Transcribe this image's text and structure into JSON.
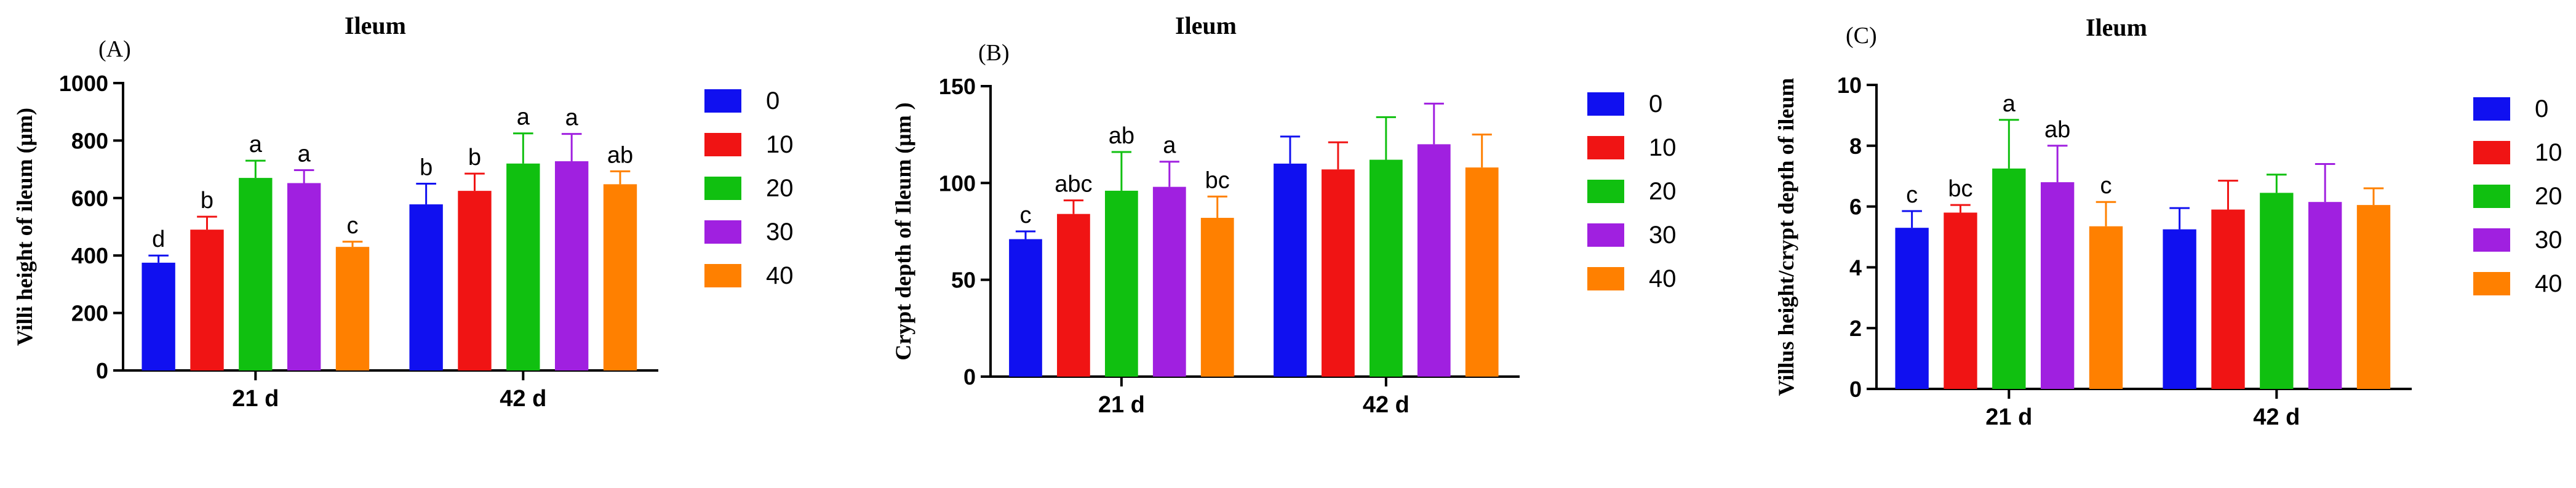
{
  "colors": {
    "0": "#1010f0",
    "10": "#f01414",
    "20": "#10c010",
    "30": "#a020e0",
    "40": "#ff8000",
    "axis": "#000000",
    "error_bar_note": "error bars drawn in series color"
  },
  "legend": [
    "0",
    "10",
    "20",
    "30",
    "40"
  ],
  "chart_data": [
    {
      "type": "bar",
      "panel_label": "(A)",
      "title": "Ileum",
      "ylabel": "Villi height of ileum (μm)",
      "xlabel": "",
      "categories": [
        "21 d",
        "42 d"
      ],
      "ylim": [
        0,
        1000
      ],
      "yticks": [
        "0",
        "200",
        "400",
        "600",
        "800",
        "1000"
      ],
      "series": [
        {
          "name": "0",
          "values": [
            375,
            578
          ],
          "errors": [
            25,
            72
          ],
          "letters": [
            "d",
            "b"
          ]
        },
        {
          "name": "10",
          "values": [
            490,
            625
          ],
          "errors": [
            45,
            60
          ],
          "letters": [
            "b",
            "b"
          ]
        },
        {
          "name": "20",
          "values": [
            670,
            720
          ],
          "errors": [
            60,
            105
          ],
          "letters": [
            "a",
            "a"
          ]
        },
        {
          "name": "30",
          "values": [
            652,
            728
          ],
          "errors": [
            45,
            95
          ],
          "letters": [
            "a",
            "a"
          ]
        },
        {
          "name": "40",
          "values": [
            430,
            648
          ],
          "errors": [
            18,
            45
          ],
          "letters": [
            "c",
            "ab"
          ]
        }
      ],
      "grid": false,
      "legend_position": "right"
    },
    {
      "type": "bar",
      "panel_label": "(B)",
      "title": "Ileum",
      "ylabel": "Crypt depth of Ileum (μm )",
      "xlabel": "",
      "categories": [
        "21 d",
        "42 d"
      ],
      "ylim": [
        0,
        150
      ],
      "yticks": [
        "0",
        "50",
        "100",
        "150"
      ],
      "series": [
        {
          "name": "0",
          "values": [
            71,
            110
          ],
          "errors": [
            4,
            14
          ],
          "letters": [
            "c",
            ""
          ]
        },
        {
          "name": "10",
          "values": [
            84,
            107
          ],
          "errors": [
            7,
            14
          ],
          "letters": [
            "abc",
            ""
          ]
        },
        {
          "name": "20",
          "values": [
            96,
            112
          ],
          "errors": [
            20,
            22
          ],
          "letters": [
            "ab",
            ""
          ]
        },
        {
          "name": "30",
          "values": [
            98,
            120
          ],
          "errors": [
            13,
            21
          ],
          "letters": [
            "a",
            ""
          ]
        },
        {
          "name": "40",
          "values": [
            82,
            108
          ],
          "errors": [
            11,
            17
          ],
          "letters": [
            "bc",
            ""
          ]
        }
      ],
      "grid": false,
      "legend_position": "right"
    },
    {
      "type": "bar",
      "panel_label": "(C)",
      "title": "Ileum",
      "ylabel": "Villus height/crypt depth of ileum",
      "xlabel": "",
      "categories": [
        "21 d",
        "42 d"
      ],
      "ylim": [
        0,
        10
      ],
      "yticks": [
        "0",
        "2",
        "4",
        "6",
        "8",
        "10"
      ],
      "series": [
        {
          "name": "0",
          "values": [
            5.3,
            5.25
          ],
          "errors": [
            0.55,
            0.7
          ],
          "letters": [
            "c",
            ""
          ]
        },
        {
          "name": "10",
          "values": [
            5.8,
            5.9
          ],
          "errors": [
            0.25,
            0.95
          ],
          "letters": [
            "bc",
            ""
          ]
        },
        {
          "name": "20",
          "values": [
            7.25,
            6.45
          ],
          "errors": [
            1.6,
            0.6
          ],
          "letters": [
            "a",
            ""
          ]
        },
        {
          "name": "30",
          "values": [
            6.8,
            6.15
          ],
          "errors": [
            1.2,
            1.25
          ],
          "letters": [
            "ab",
            ""
          ]
        },
        {
          "name": "40",
          "values": [
            5.35,
            6.05
          ],
          "errors": [
            0.8,
            0.55
          ],
          "letters": [
            "c",
            ""
          ]
        }
      ],
      "grid": false,
      "legend_position": "right"
    }
  ]
}
